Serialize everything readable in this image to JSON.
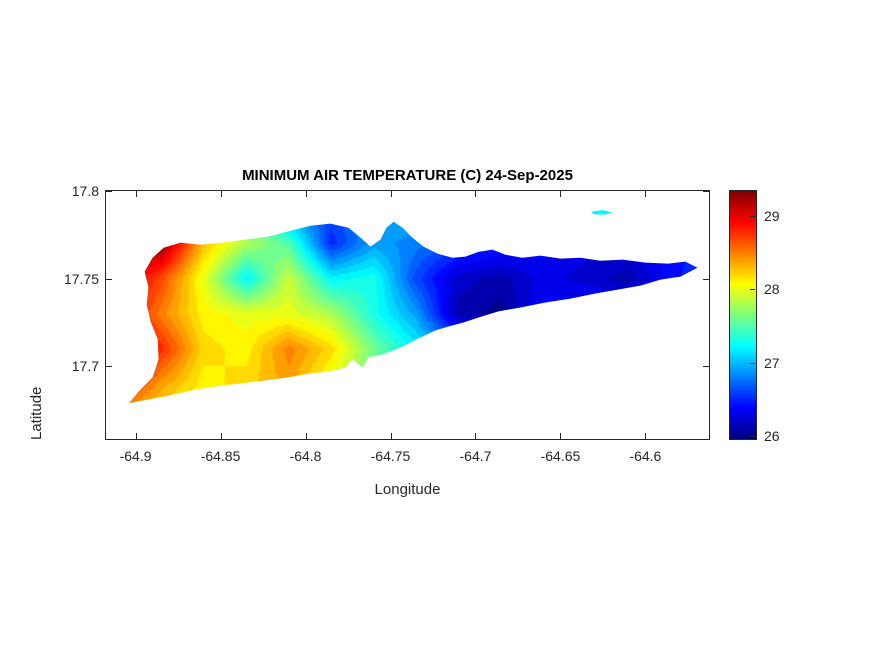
{
  "chart_data": {
    "type": "heatmap",
    "title": "MINIMUM AIR TEMPERATURE (C) 24-Sep-2025",
    "xlabel": "Longitude",
    "ylabel": "Latitude",
    "units": "C",
    "colormap": "jet",
    "xlim": [
      -64.918,
      -64.562
    ],
    "ylim": [
      17.658,
      17.8005
    ],
    "clim": [
      25.95,
      29.35
    ],
    "x_ticks": {
      "values": [
        -64.9,
        -64.85,
        -64.8,
        -64.75,
        -64.7,
        -64.65,
        -64.6
      ],
      "labels": [
        "-64.9",
        "-64.85",
        "-64.8",
        "-64.75",
        "-64.7",
        "-64.65",
        "-64.6"
      ]
    },
    "y_ticks": {
      "values": [
        17.7,
        17.75,
        17.8
      ],
      "labels": [
        "17.7",
        "17.75",
        "17.8"
      ]
    },
    "colorbar_ticks": {
      "values": [
        26,
        27,
        28,
        29
      ],
      "labels": [
        "26",
        "27",
        "28",
        "29"
      ]
    },
    "grid": {
      "lons": [
        -64.91,
        -64.885,
        -64.86,
        -64.835,
        -64.81,
        -64.785,
        -64.76,
        -64.735,
        -64.71,
        -64.685,
        -64.66,
        -64.635,
        -64.61,
        -64.585,
        -64.56
      ],
      "lats": [
        17.67,
        17.69,
        17.71,
        17.73,
        17.75,
        17.77,
        17.79
      ],
      "values_c": [
        [
          28.3,
          28.1,
          28.0,
          28.1,
          28.2,
          27.9,
          27.5,
          27.2,
          26.9,
          26.8,
          26.8,
          26.8,
          26.8,
          26.8,
          26.8
        ],
        [
          28.9,
          28.4,
          28.1,
          28.2,
          28.4,
          28.0,
          27.5,
          27.1,
          26.8,
          26.7,
          26.7,
          26.7,
          26.7,
          26.7,
          26.7
        ],
        [
          29.2,
          28.8,
          28.2,
          28.1,
          28.5,
          28.2,
          27.6,
          27.2,
          26.8,
          26.6,
          26.6,
          26.6,
          26.6,
          26.7,
          26.8
        ],
        [
          29.0,
          28.5,
          28.1,
          28.0,
          28.0,
          27.8,
          27.3,
          26.9,
          26.1,
          26.0,
          26.4,
          26.5,
          26.4,
          26.5,
          26.7
        ],
        [
          29.1,
          28.7,
          28.0,
          27.2,
          27.9,
          27.2,
          27.3,
          26.6,
          26.2,
          26.1,
          26.3,
          26.2,
          26.1,
          26.4,
          26.6
        ],
        [
          29.0,
          29.3,
          28.3,
          27.8,
          27.5,
          26.5,
          26.9,
          26.8,
          26.6,
          26.5,
          26.4,
          26.3,
          26.3,
          26.4,
          26.5
        ],
        [
          28.6,
          29.0,
          28.2,
          27.6,
          26.8,
          26.6,
          26.9,
          27.0,
          26.8,
          26.6,
          26.5,
          26.4,
          26.3,
          26.4,
          26.5
        ]
      ]
    },
    "island_outline_lonlat": [
      [
        -64.904,
        17.679
      ],
      [
        -64.898,
        17.6858
      ],
      [
        -64.89,
        17.6938
      ],
      [
        -64.8865,
        17.704
      ],
      [
        -64.887,
        17.7153
      ],
      [
        -64.8912,
        17.7256
      ],
      [
        -64.8935,
        17.7352
      ],
      [
        -64.8924,
        17.7449
      ],
      [
        -64.8947,
        17.754
      ],
      [
        -64.89,
        17.7619
      ],
      [
        -64.8835,
        17.7676
      ],
      [
        -64.8735,
        17.7705
      ],
      [
        -64.8618,
        17.7693
      ],
      [
        -64.8488,
        17.7705
      ],
      [
        -64.8353,
        17.7722
      ],
      [
        -64.8218,
        17.7739
      ],
      [
        -64.8088,
        17.7773
      ],
      [
        -64.7971,
        17.7801
      ],
      [
        -64.7853,
        17.7813
      ],
      [
        -64.7747,
        17.779
      ],
      [
        -64.7676,
        17.7733
      ],
      [
        -64.7618,
        17.7682
      ],
      [
        -64.7559,
        17.7722
      ],
      [
        -64.7524,
        17.779
      ],
      [
        -64.7482,
        17.7824
      ],
      [
        -64.7429,
        17.779
      ],
      [
        -64.7371,
        17.7733
      ],
      [
        -64.7306,
        17.7682
      ],
      [
        -64.7224,
        17.7642
      ],
      [
        -64.7135,
        17.7619
      ],
      [
        -64.7059,
        17.7625
      ],
      [
        -64.6982,
        17.7653
      ],
      [
        -64.69,
        17.7665
      ],
      [
        -64.6824,
        17.7636
      ],
      [
        -64.6724,
        17.7619
      ],
      [
        -64.6618,
        17.7631
      ],
      [
        -64.65,
        17.7614
      ],
      [
        -64.6382,
        17.7619
      ],
      [
        -64.6265,
        17.7602
      ],
      [
        -64.6135,
        17.7608
      ],
      [
        -64.6,
        17.7591
      ],
      [
        -64.5865,
        17.7585
      ],
      [
        -64.5765,
        17.7597
      ],
      [
        -64.5694,
        17.7562
      ],
      [
        -64.5794,
        17.7511
      ],
      [
        -64.5912,
        17.7494
      ],
      [
        -64.6029,
        17.746
      ],
      [
        -64.6159,
        17.7438
      ],
      [
        -64.6294,
        17.7415
      ],
      [
        -64.6441,
        17.7386
      ],
      [
        -64.6588,
        17.7364
      ],
      [
        -64.6735,
        17.7335
      ],
      [
        -64.6865,
        17.7313
      ],
      [
        -64.6982,
        17.7278
      ],
      [
        -64.7071,
        17.725
      ],
      [
        -64.7159,
        17.7227
      ],
      [
        -64.7235,
        17.7205
      ],
      [
        -64.7324,
        17.7165
      ],
      [
        -64.7394,
        17.7131
      ],
      [
        -64.7465,
        17.7097
      ],
      [
        -64.7547,
        17.7068
      ],
      [
        -64.7629,
        17.7051
      ],
      [
        -64.7665,
        17.6994
      ],
      [
        -64.7724,
        17.704
      ],
      [
        -64.7765,
        17.6994
      ],
      [
        -64.7853,
        17.6972
      ],
      [
        -64.7971,
        17.696
      ],
      [
        -64.81,
        17.6938
      ],
      [
        -64.8235,
        17.692
      ],
      [
        -64.8382,
        17.6903
      ],
      [
        -64.8529,
        17.6886
      ],
      [
        -64.8665,
        17.6864
      ],
      [
        -64.8794,
        17.6835
      ],
      [
        -64.8912,
        17.6813
      ]
    ],
    "buck_island": {
      "outline_lonlat": [
        [
          -64.632,
          17.7882
        ],
        [
          -64.625,
          17.789
        ],
        [
          -64.62,
          17.7878
        ],
        [
          -64.6235,
          17.7865
        ],
        [
          -64.63,
          17.7866
        ]
      ],
      "value_c": 27.2
    }
  }
}
